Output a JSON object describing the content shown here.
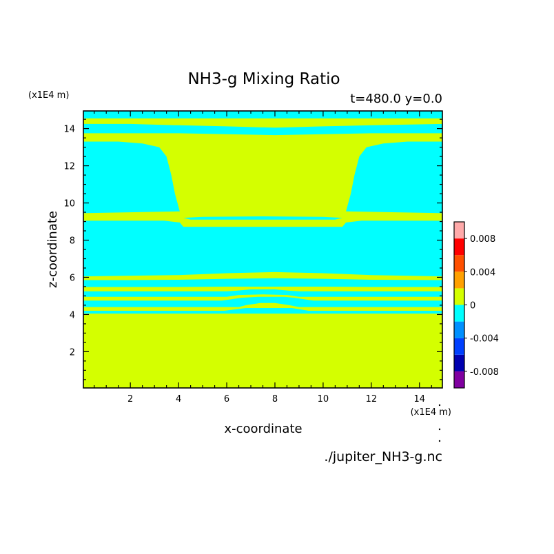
{
  "chart_data": {
    "type": "heatmap",
    "title": "NH3-g Mixing Ratio",
    "subtitle": "t=480.0 y=0.0",
    "xlabel": "x-coordinate",
    "ylabel": "z-coordinate",
    "x_unit": "(x1E4 m)",
    "y_unit": "(x1E4 m)",
    "footer": "./jupiter_NH3-g.nc",
    "xlim": [
      0.05,
      14.95
    ],
    "ylim": [
      0.05,
      14.95
    ],
    "x_ticks": [
      2,
      4,
      6,
      8,
      10,
      12,
      14
    ],
    "y_ticks": [
      2,
      4,
      6,
      8,
      10,
      12,
      14
    ],
    "colors": {
      "zero": "#d4ff00",
      "neg_small": "#00ffff"
    },
    "colorbar": {
      "bounds": [
        -0.01,
        -0.008,
        -0.006,
        -0.004,
        -0.002,
        0,
        0.002,
        0.004,
        0.006,
        0.008,
        0.01
      ],
      "colors": [
        "#8000a0",
        "#0000b0",
        "#0040ff",
        "#0090ff",
        "#00ffff",
        "#d4ff00",
        "#ffa000",
        "#ff5000",
        "#ff0000",
        "#ffaaaa"
      ],
      "tick_values": [
        0.008,
        0.004,
        0,
        -0.004,
        -0.008
      ],
      "tick_labels": [
        "0.008",
        "0.004",
        "0",
        "-0.004",
        "-0.008"
      ]
    },
    "background_level": "zero",
    "regions": [
      {
        "level": "neg_small",
        "poly": [
          [
            0.05,
            14.95
          ],
          [
            14.95,
            14.95
          ],
          [
            14.95,
            14.55
          ],
          [
            0.05,
            14.55
          ]
        ]
      },
      {
        "level": "neg_small",
        "poly": [
          [
            0.05,
            14.25
          ],
          [
            2,
            14.25
          ],
          [
            4,
            14.18
          ],
          [
            6,
            14.12
          ],
          [
            8,
            14.05
          ],
          [
            10,
            14.12
          ],
          [
            12,
            14.18
          ],
          [
            14.95,
            14.25
          ],
          [
            14.95,
            13.75
          ],
          [
            12,
            13.75
          ],
          [
            10,
            13.7
          ],
          [
            8,
            13.65
          ],
          [
            6,
            13.7
          ],
          [
            4,
            13.75
          ],
          [
            0.05,
            13.75
          ]
        ]
      },
      {
        "level": "neg_small",
        "poly": [
          [
            0.05,
            13.3
          ],
          [
            1.5,
            13.3
          ],
          [
            2.5,
            13.2
          ],
          [
            3.2,
            13.0
          ],
          [
            3.5,
            12.5
          ],
          [
            3.7,
            11.5
          ],
          [
            3.85,
            10.5
          ],
          [
            4.05,
            9.55
          ],
          [
            0.05,
            9.45
          ]
        ]
      },
      {
        "level": "neg_small",
        "poly": [
          [
            14.95,
            13.3
          ],
          [
            13.5,
            13.3
          ],
          [
            12.5,
            13.2
          ],
          [
            11.8,
            13.0
          ],
          [
            11.5,
            12.5
          ],
          [
            11.3,
            11.5
          ],
          [
            11.15,
            10.5
          ],
          [
            10.95,
            9.55
          ],
          [
            14.95,
            9.45
          ]
        ]
      },
      {
        "level": "neg_small",
        "poly": [
          [
            4.2,
            9.2
          ],
          [
            5,
            9.25
          ],
          [
            7.5,
            9.28
          ],
          [
            10,
            9.25
          ],
          [
            10.8,
            9.2
          ],
          [
            10.5,
            9.1
          ],
          [
            7.5,
            9.1
          ],
          [
            4.5,
            9.1
          ]
        ]
      },
      {
        "level": "neg_small",
        "poly": [
          [
            0.05,
            9.05
          ],
          [
            3.4,
            9.05
          ],
          [
            4.05,
            8.95
          ],
          [
            4.2,
            8.72
          ],
          [
            10.8,
            8.72
          ],
          [
            10.95,
            8.95
          ],
          [
            11.6,
            9.05
          ],
          [
            14.95,
            9.05
          ],
          [
            14.95,
            6.05
          ],
          [
            12,
            6.12
          ],
          [
            10,
            6.22
          ],
          [
            8,
            6.28
          ],
          [
            6,
            6.22
          ],
          [
            4,
            6.12
          ],
          [
            0.05,
            6.05
          ]
        ]
      },
      {
        "level": "neg_small",
        "poly": [
          [
            0.05,
            5.85
          ],
          [
            2,
            5.85
          ],
          [
            4,
            5.87
          ],
          [
            6,
            5.92
          ],
          [
            8,
            5.95
          ],
          [
            10,
            5.92
          ],
          [
            12,
            5.87
          ],
          [
            14.95,
            5.85
          ],
          [
            14.95,
            5.48
          ],
          [
            12,
            5.48
          ],
          [
            10,
            5.5
          ],
          [
            8,
            5.5
          ],
          [
            6,
            5.5
          ],
          [
            4,
            5.48
          ],
          [
            0.05,
            5.48
          ]
        ]
      },
      {
        "level": "neg_small",
        "poly": [
          [
            0.05,
            5.25
          ],
          [
            6,
            5.25
          ],
          [
            6.4,
            5.28
          ],
          [
            7,
            5.35
          ],
          [
            8,
            5.35
          ],
          [
            8.6,
            5.28
          ],
          [
            9,
            5.25
          ],
          [
            14.95,
            5.25
          ],
          [
            14.95,
            4.95
          ],
          [
            9,
            4.95
          ],
          [
            8.5,
            5.05
          ],
          [
            7.5,
            5.08
          ],
          [
            6.5,
            5.05
          ],
          [
            6,
            4.95
          ],
          [
            0.05,
            4.95
          ]
        ]
      },
      {
        "level": "neg_small",
        "poly": [
          [
            0.05,
            4.75
          ],
          [
            5.8,
            4.75
          ],
          [
            6.2,
            4.82
          ],
          [
            6.6,
            4.9
          ],
          [
            7.3,
            4.95
          ],
          [
            8.4,
            4.95
          ],
          [
            8.8,
            4.9
          ],
          [
            9.2,
            4.82
          ],
          [
            9.6,
            4.75
          ],
          [
            14.95,
            4.75
          ],
          [
            14.95,
            4.4
          ],
          [
            9,
            4.4
          ],
          [
            8.6,
            4.5
          ],
          [
            8,
            4.62
          ],
          [
            7.4,
            4.62
          ],
          [
            6.8,
            4.5
          ],
          [
            6.5,
            4.4
          ],
          [
            0.05,
            4.4
          ]
        ]
      },
      {
        "level": "neg_small",
        "poly": [
          [
            0.05,
            4.2
          ],
          [
            5.9,
            4.2
          ],
          [
            6.8,
            4.35
          ],
          [
            8.7,
            4.35
          ],
          [
            9.4,
            4.2
          ],
          [
            14.95,
            4.2
          ],
          [
            14.95,
            4.05
          ],
          [
            0.05,
            4.05
          ]
        ]
      }
    ]
  }
}
